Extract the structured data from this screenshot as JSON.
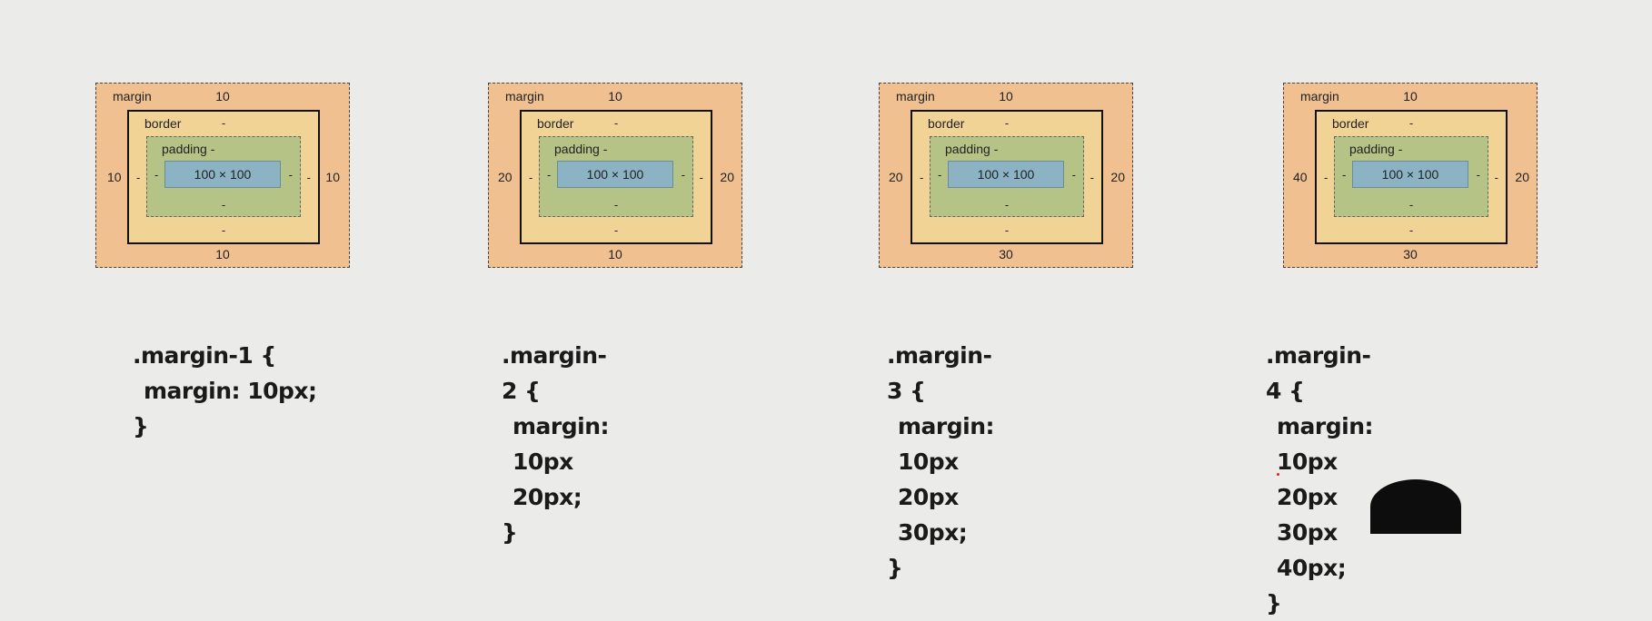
{
  "diagrams": [
    {
      "margin_label": "margin",
      "border_label": "border",
      "padding_label": "padding -",
      "content": "100 × 100",
      "margin_top": "10",
      "margin_right": "10",
      "margin_bottom": "10",
      "margin_left": "10",
      "dash": "-",
      "code": {
        "selector": ".margin-1 {",
        "declaration": "margin: 10px;",
        "close": "}"
      }
    },
    {
      "margin_label": "margin",
      "border_label": "border",
      "padding_label": "padding -",
      "content": "100 × 100",
      "margin_top": "10",
      "margin_right": "20",
      "margin_bottom": "10",
      "margin_left": "20",
      "dash": "-",
      "code": {
        "selector": ".margin-2 {",
        "declaration": "margin: 10px 20px;",
        "close": "}"
      }
    },
    {
      "margin_label": "margin",
      "border_label": "border",
      "padding_label": "padding -",
      "content": "100 × 100",
      "margin_top": "10",
      "margin_right": "20",
      "margin_bottom": "30",
      "margin_left": "20",
      "dash": "-",
      "code": {
        "selector": ".margin-3 {",
        "declaration": "margin: 10px 20px 30px;",
        "close": "}"
      }
    },
    {
      "margin_label": "margin",
      "border_label": "border",
      "padding_label": "padding -",
      "content": "100 × 100",
      "margin_top": "10",
      "margin_right": "20",
      "margin_bottom": "30",
      "margin_left": "40",
      "dash": "-",
      "code": {
        "selector": ".margin-4 {",
        "declaration": "margin: 10px 20px 30px 40px;",
        "close": "}"
      }
    }
  ],
  "colors": {
    "margin": "#f0c090",
    "border_area": "#f2d396",
    "padding": "#b5c387",
    "content": "#8cb3c4",
    "background": "#ebebea"
  }
}
